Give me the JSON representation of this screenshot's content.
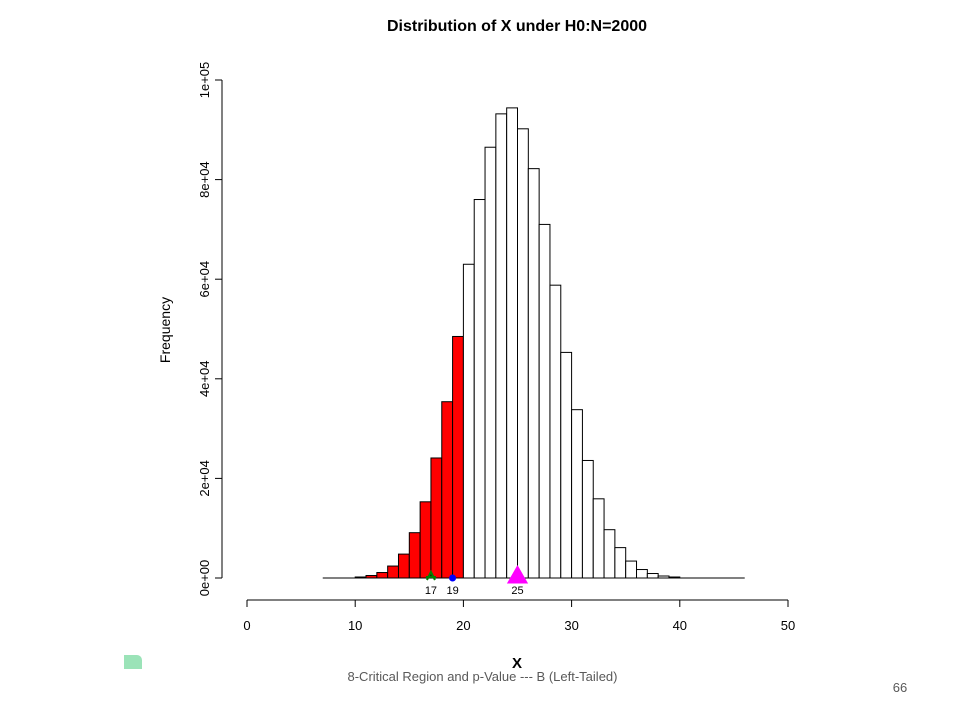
{
  "chart_data": {
    "type": "histogram",
    "title": "Distribution of X under H0:N=2000",
    "xlabel": "X",
    "ylabel": "Frequency",
    "xlim": [
      0,
      50
    ],
    "ylim": [
      0,
      100000
    ],
    "x_ticks": [
      "0",
      "10",
      "20",
      "30",
      "40",
      "50"
    ],
    "y_ticks": [
      "0e+00",
      "2e+04",
      "4e+04",
      "6e+04",
      "8e+04",
      "1e+05"
    ],
    "bin_width": 1,
    "bins_start": [
      7,
      8,
      9,
      10,
      11,
      12,
      13,
      14,
      15,
      16,
      17,
      18,
      19,
      20,
      21,
      22,
      23,
      24,
      25,
      26,
      27,
      28,
      29,
      30,
      31,
      32,
      33,
      34,
      35,
      36,
      37,
      38,
      39,
      40,
      41,
      42,
      43,
      44,
      45
    ],
    "frequencies": [
      0,
      0,
      0,
      200,
      500,
      1100,
      2400,
      4800,
      9100,
      15300,
      24100,
      35400,
      48500,
      63000,
      76000,
      86500,
      93200,
      94400,
      90200,
      82200,
      71000,
      58800,
      45300,
      33800,
      23600,
      15900,
      9700,
      6100,
      3400,
      1700,
      900,
      400,
      200,
      0,
      0,
      0,
      0,
      0,
      0
    ],
    "critical_region": {
      "upper_bound": 20,
      "color": "#ff0000"
    },
    "markers": [
      {
        "x": 17,
        "label": "17",
        "shape": "cross",
        "color": "#008000"
      },
      {
        "x": 19,
        "label": "19",
        "shape": "dot",
        "color": "#0000ff"
      },
      {
        "x": 25,
        "label": "25",
        "shape": "triangle",
        "color": "#ff00ff"
      }
    ]
  },
  "footer": {
    "text": "8-Critical Region and p-Value --- B (Left-Tailed)",
    "page_number": "66"
  }
}
